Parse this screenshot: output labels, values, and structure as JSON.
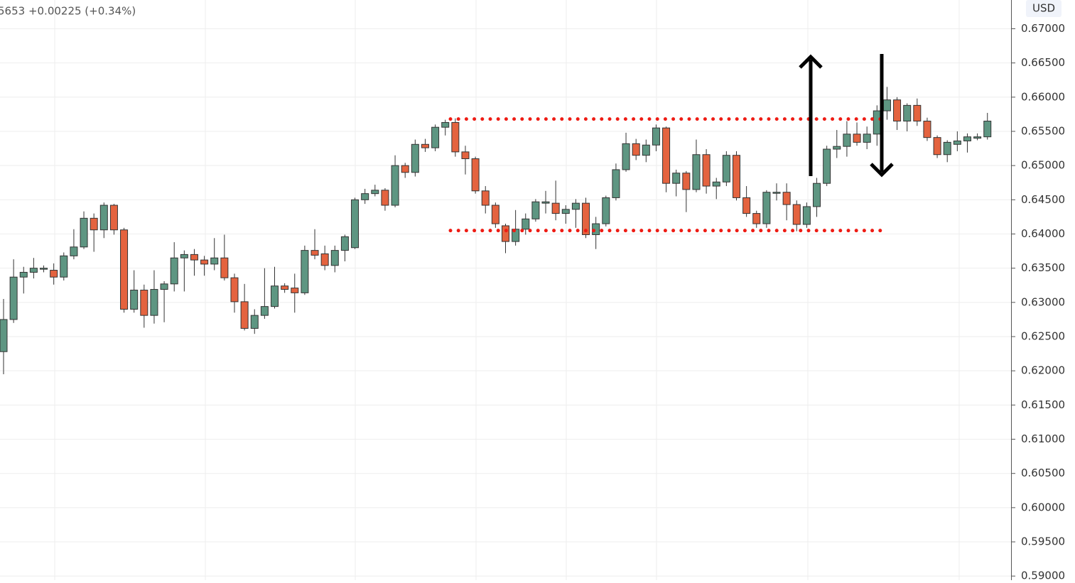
{
  "chart_data": {
    "type": "candlestick",
    "header": "5653 +0.00225 (+0.34%)",
    "currency": "USD",
    "ylim": [
      0.5894,
      0.6742
    ],
    "yticks": [
      {
        "value": 0.59,
        "label": "0.59000"
      },
      {
        "value": 0.595,
        "label": "0.59500"
      },
      {
        "value": 0.6,
        "label": "0.60000"
      },
      {
        "value": 0.605,
        "label": "0.60500"
      },
      {
        "value": 0.61,
        "label": "0.61000"
      },
      {
        "value": 0.615,
        "label": "0.61500"
      },
      {
        "value": 0.62,
        "label": "0.62000"
      },
      {
        "value": 0.625,
        "label": "0.62500"
      },
      {
        "value": 0.63,
        "label": "0.63000"
      },
      {
        "value": 0.635,
        "label": "0.63500"
      },
      {
        "value": 0.64,
        "label": "0.64000"
      },
      {
        "value": 0.645,
        "label": "0.64500"
      },
      {
        "value": 0.65,
        "label": "0.65000"
      },
      {
        "value": 0.655,
        "label": "0.65500"
      },
      {
        "value": 0.66,
        "label": "0.66000"
      },
      {
        "value": 0.665,
        "label": "0.66500"
      },
      {
        "value": 0.67,
        "label": "0.67000"
      }
    ],
    "grid": true,
    "up_color": "#5e9682",
    "down_color": "#e4633f",
    "levels": [
      {
        "value": 0.6568,
        "color": "#ee1c14"
      },
      {
        "value": 0.6405,
        "color": "#ee1c14"
      }
    ],
    "open": [
      0.6228,
      0.6275,
      0.6337,
      0.6344,
      0.635,
      0.6347,
      0.6337,
      0.6368,
      0.6381,
      0.6423,
      0.6406,
      0.6442,
      0.6406,
      0.629,
      0.6318,
      0.6281,
      0.6319,
      0.6327,
      0.6365,
      0.637,
      0.6362,
      0.6356,
      0.6365,
      0.6336,
      0.6301,
      0.6262,
      0.6281,
      0.6294,
      0.6324,
      0.6321,
      0.6314,
      0.6376,
      0.6371,
      0.6354,
      0.6376,
      0.638,
      0.645,
      0.6459,
      0.6464,
      0.6442,
      0.65,
      0.649,
      0.6531,
      0.6526,
      0.6556,
      0.6563,
      0.652,
      0.651,
      0.6463,
      0.6442,
      0.6412,
      0.6389,
      0.6407,
      0.6422,
      0.6445,
      0.6445,
      0.643,
      0.6436,
      0.6445,
      0.6399,
      0.6415,
      0.6453,
      0.6494,
      0.6532,
      0.6515,
      0.653,
      0.6555,
      0.6474,
      0.6489,
      0.6465,
      0.6516,
      0.647,
      0.6476,
      0.6515,
      0.6453,
      0.643,
      0.6415,
      0.6461,
      0.6461,
      0.6443,
      0.6414,
      0.644,
      0.6474,
      0.6524,
      0.6528,
      0.6546,
      0.6534,
      0.6546,
      0.658,
      0.6596,
      0.6565,
      0.6588,
      0.6565,
      0.6541,
      0.6516,
      0.6531,
      0.6536,
      0.654,
      0.6542
    ],
    "high": [
      0.6305,
      0.6363,
      0.6352,
      0.6365,
      0.6354,
      0.6357,
      0.6373,
      0.6407,
      0.6433,
      0.643,
      0.6446,
      0.6444,
      0.6409,
      0.6347,
      0.6326,
      0.6347,
      0.6331,
      0.6388,
      0.6376,
      0.6378,
      0.6368,
      0.6394,
      0.6399,
      0.6342,
      0.6327,
      0.629,
      0.635,
      0.6352,
      0.6328,
      0.6342,
      0.6383,
      0.6407,
      0.6383,
      0.6383,
      0.6399,
      0.6453,
      0.6466,
      0.6472,
      0.6467,
      0.6515,
      0.6504,
      0.6538,
      0.6539,
      0.656,
      0.6567,
      0.6569,
      0.6529,
      0.6513,
      0.647,
      0.6446,
      0.6415,
      0.6435,
      0.643,
      0.6451,
      0.6463,
      0.6478,
      0.6442,
      0.6451,
      0.6453,
      0.6425,
      0.6456,
      0.6503,
      0.6548,
      0.6539,
      0.6538,
      0.656,
      0.6557,
      0.6494,
      0.6492,
      0.6538,
      0.6524,
      0.6482,
      0.6521,
      0.6521,
      0.647,
      0.6434,
      0.6464,
      0.6474,
      0.6474,
      0.6449,
      0.6446,
      0.6482,
      0.6529,
      0.6552,
      0.6565,
      0.6563,
      0.6557,
      0.6588,
      0.6615,
      0.66,
      0.6591,
      0.6598,
      0.657,
      0.6544,
      0.6537,
      0.655,
      0.6547,
      0.6547,
      0.6577
    ],
    "low": [
      0.6195,
      0.627,
      0.6313,
      0.6335,
      0.6344,
      0.6326,
      0.6332,
      0.6363,
      0.6378,
      0.6374,
      0.6394,
      0.6399,
      0.6285,
      0.6285,
      0.6263,
      0.6269,
      0.6271,
      0.6316,
      0.6316,
      0.6339,
      0.6339,
      0.6347,
      0.6332,
      0.6285,
      0.6259,
      0.6254,
      0.6276,
      0.6291,
      0.6314,
      0.6285,
      0.6311,
      0.6363,
      0.6347,
      0.6344,
      0.636,
      0.6378,
      0.6444,
      0.6455,
      0.6434,
      0.6439,
      0.6482,
      0.6484,
      0.652,
      0.6521,
      0.6544,
      0.6513,
      0.6487,
      0.6459,
      0.643,
      0.6409,
      0.6372,
      0.6383,
      0.6399,
      0.6418,
      0.643,
      0.642,
      0.6415,
      0.6409,
      0.6394,
      0.6378,
      0.6411,
      0.6449,
      0.6491,
      0.6508,
      0.6505,
      0.6521,
      0.6461,
      0.6455,
      0.6432,
      0.6461,
      0.6459,
      0.6451,
      0.647,
      0.6449,
      0.6425,
      0.6409,
      0.6409,
      0.6449,
      0.642,
      0.6404,
      0.6409,
      0.6425,
      0.647,
      0.6511,
      0.6513,
      0.6529,
      0.6524,
      0.6529,
      0.6567,
      0.6552,
      0.655,
      0.6558,
      0.6536,
      0.6511,
      0.6505,
      0.6521,
      0.6519,
      0.6537,
      0.6538
    ],
    "close": [
      0.6275,
      0.6337,
      0.6344,
      0.635,
      0.635,
      0.6337,
      0.6368,
      0.6381,
      0.6423,
      0.6406,
      0.6442,
      0.6406,
      0.629,
      0.6318,
      0.6281,
      0.6319,
      0.6327,
      0.6365,
      0.637,
      0.6362,
      0.6356,
      0.6365,
      0.6336,
      0.6301,
      0.6262,
      0.6281,
      0.6294,
      0.6324,
      0.6319,
      0.6314,
      0.6376,
      0.6369,
      0.6354,
      0.6376,
      0.6396,
      0.645,
      0.6459,
      0.6464,
      0.6442,
      0.65,
      0.649,
      0.6531,
      0.6526,
      0.6556,
      0.6563,
      0.652,
      0.651,
      0.6463,
      0.6442,
      0.6415,
      0.6389,
      0.6407,
      0.6422,
      0.6447,
      0.6447,
      0.643,
      0.6436,
      0.6445,
      0.6399,
      0.6415,
      0.6453,
      0.6494,
      0.6532,
      0.6515,
      0.653,
      0.6555,
      0.6474,
      0.6489,
      0.6465,
      0.6516,
      0.647,
      0.6476,
      0.6515,
      0.6453,
      0.643,
      0.6415,
      0.6461,
      0.6461,
      0.6443,
      0.6414,
      0.644,
      0.6474,
      0.6524,
      0.6528,
      0.6546,
      0.6534,
      0.6546,
      0.658,
      0.6596,
      0.6565,
      0.6588,
      0.6565,
      0.6541,
      0.6516,
      0.6534,
      0.6536,
      0.6542,
      0.6542,
      0.6565
    ]
  }
}
